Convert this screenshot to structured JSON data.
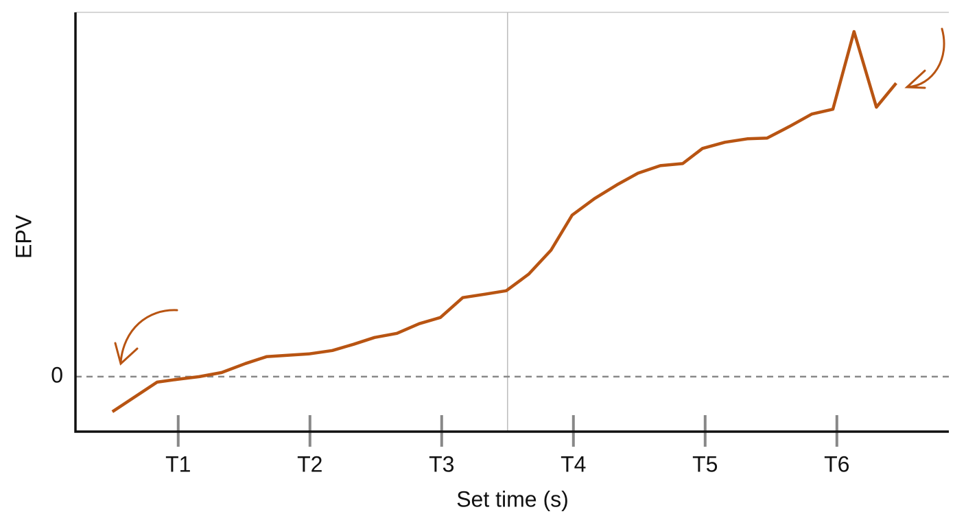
{
  "chart_data": {
    "type": "line",
    "x_label": "Set time (s)",
    "y_label": "EPV",
    "x": [
      0.5,
      0.84,
      0.99,
      1.16,
      1.33,
      1.51,
      1.67,
      1.83,
      1.99,
      2.17,
      2.33,
      2.49,
      2.66,
      2.83,
      2.99,
      3.16,
      3.33,
      3.49,
      3.66,
      3.83,
      3.99,
      4.16,
      4.33,
      4.49,
      4.66,
      4.83,
      4.98,
      5.15,
      5.32,
      5.47,
      5.64,
      5.81,
      5.97,
      6.13,
      6.3,
      6.45
    ],
    "values": [
      -0.51,
      -0.08,
      -0.04,
      0,
      0.06,
      0.19,
      0.29,
      0.31,
      0.33,
      0.38,
      0.47,
      0.57,
      0.63,
      0.77,
      0.86,
      1.15,
      1.2,
      1.25,
      1.49,
      1.84,
      2.35,
      2.59,
      2.79,
      2.96,
      3.07,
      3.1,
      3.32,
      3.41,
      3.46,
      3.47,
      3.64,
      3.82,
      3.89,
      5.02,
      3.92,
      4.27
    ],
    "color": "#b85412",
    "xlim": [
      0.22,
      6.85
    ],
    "ylim": [
      -0.8,
      5.3
    ],
    "xticks": [
      {
        "value": 1,
        "label": "T1"
      },
      {
        "value": 2,
        "label": "T2"
      },
      {
        "value": 3,
        "label": "T3"
      },
      {
        "value": 4,
        "label": "T4"
      },
      {
        "value": 5,
        "label": "T5"
      },
      {
        "value": 6,
        "label": "T6"
      }
    ],
    "yticks": [
      0
    ],
    "vline": 3.5
  }
}
